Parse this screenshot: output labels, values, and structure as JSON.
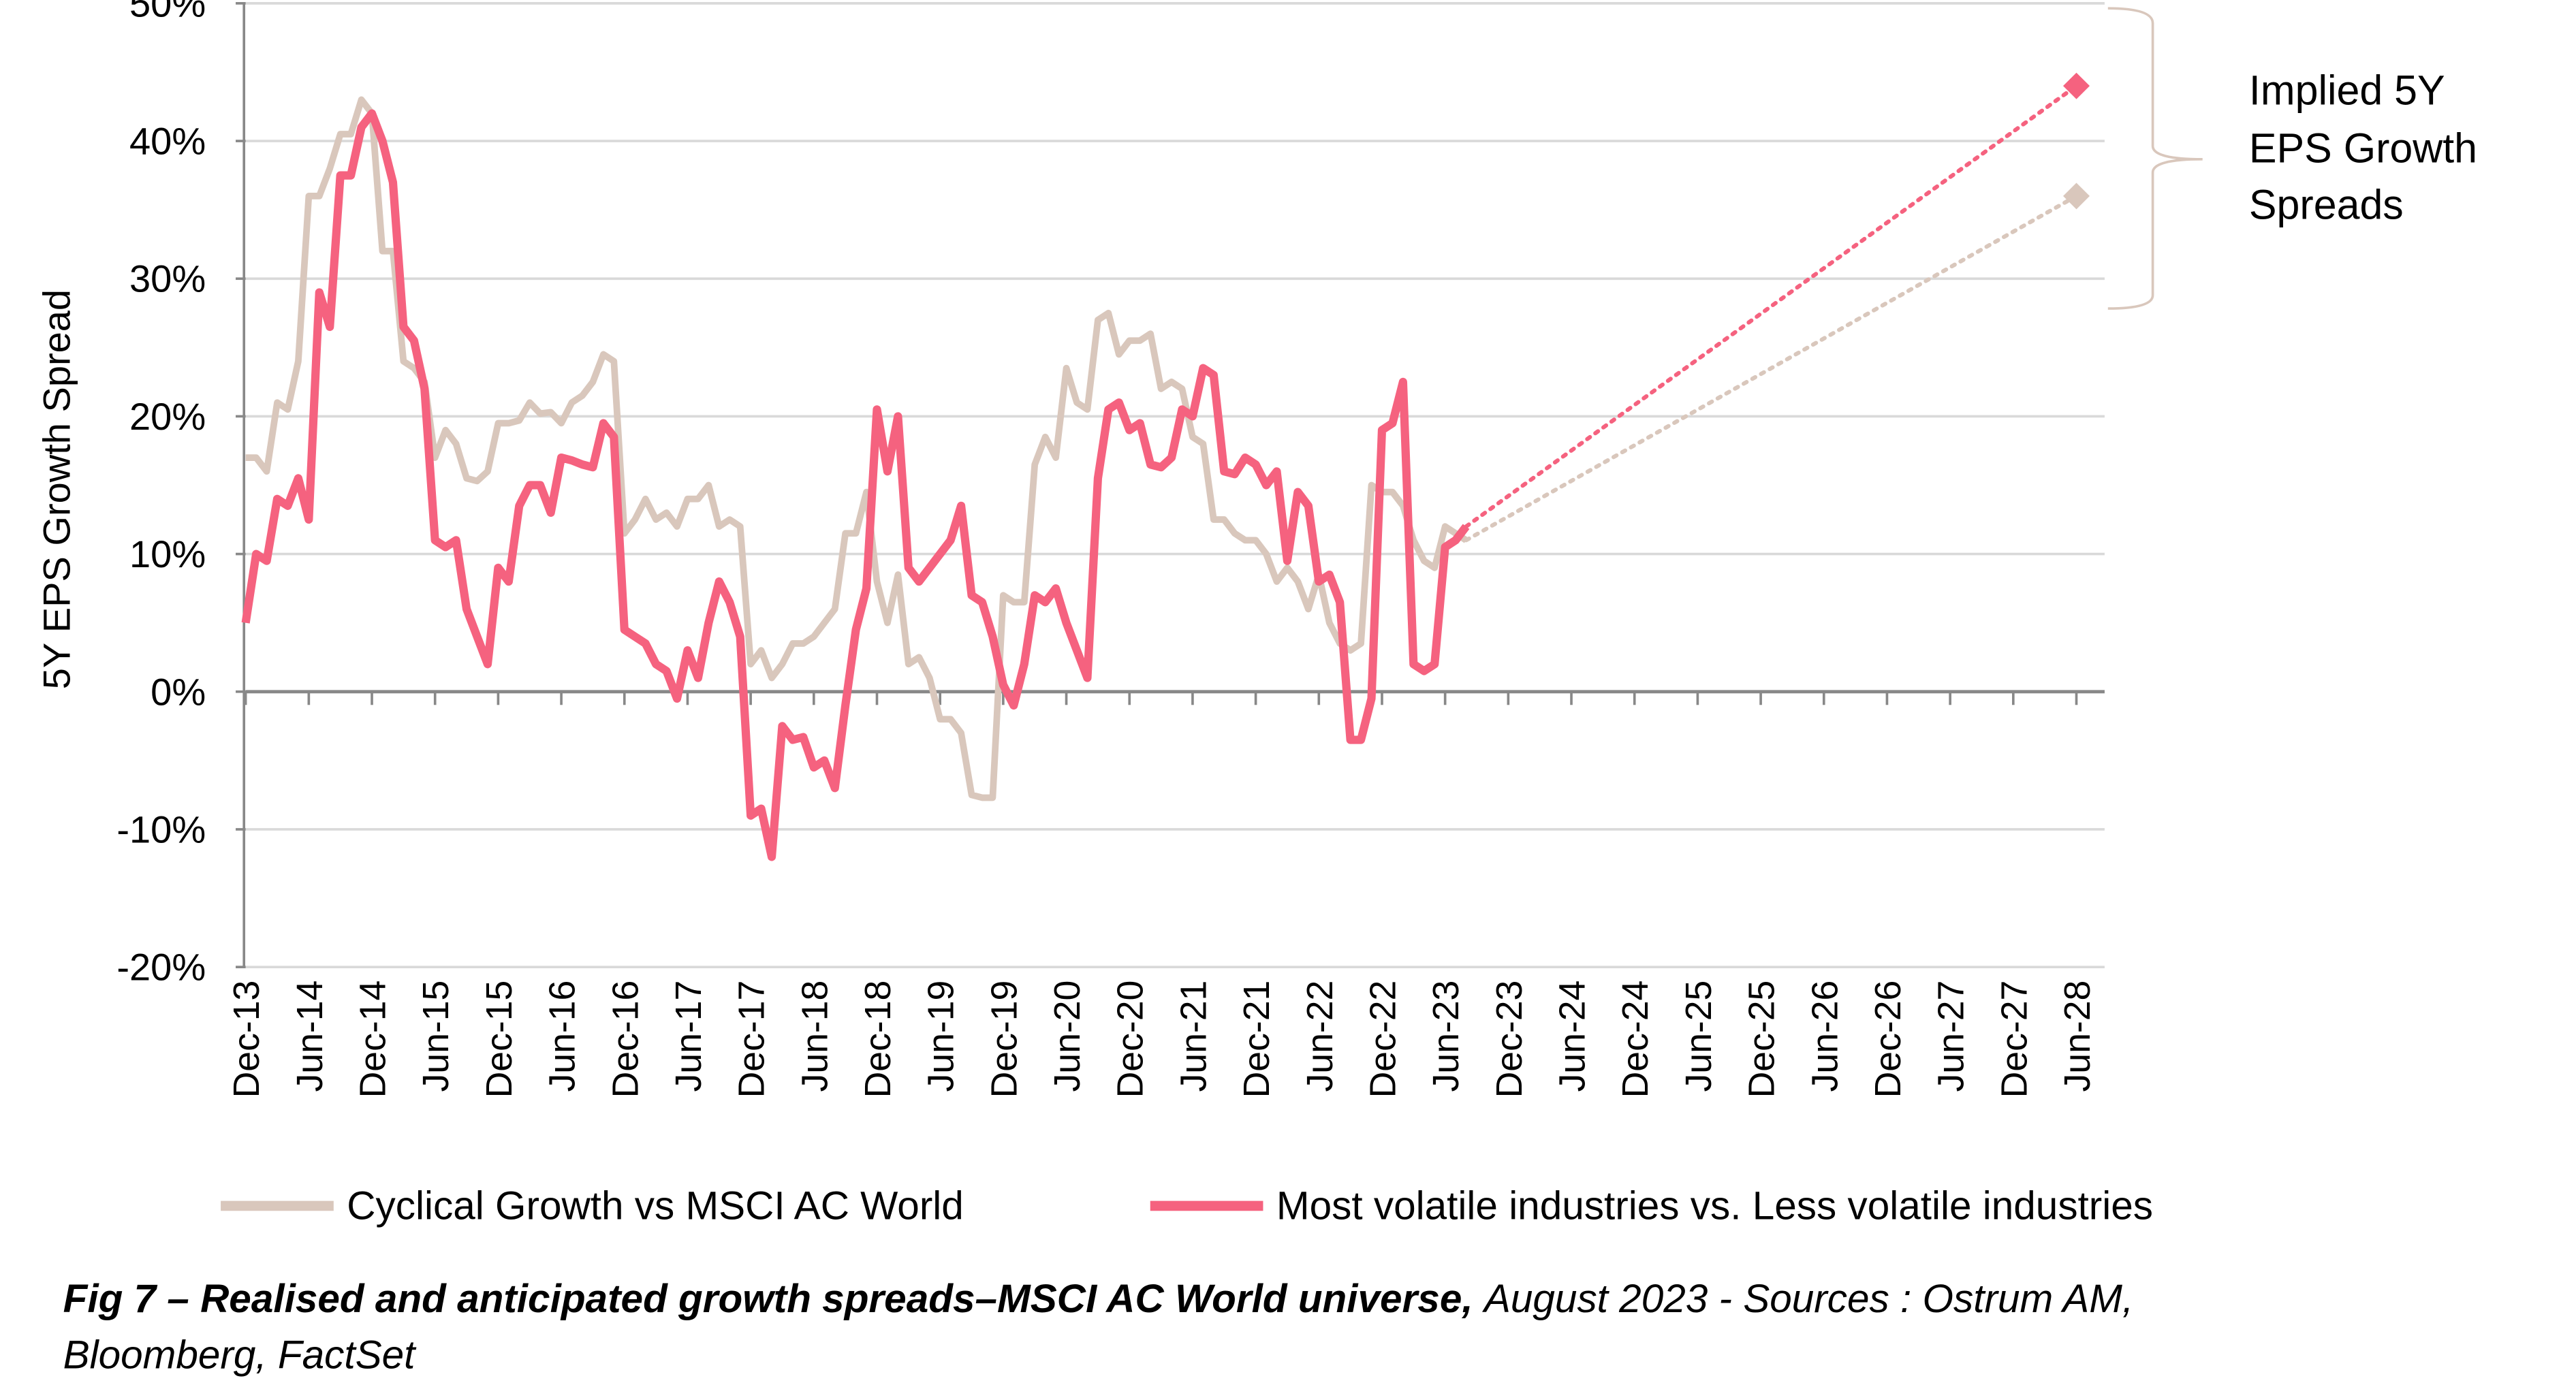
{
  "chart_data": {
    "type": "line",
    "ylabel": "5Y EPS Growth Spread",
    "ylim": [
      -20,
      50
    ],
    "yticks": [
      {
        "value": -20,
        "label": "-20%"
      },
      {
        "value": -10,
        "label": "-10%"
      },
      {
        "value": 0,
        "label": "0%"
      },
      {
        "value": 10,
        "label": "10%"
      },
      {
        "value": 20,
        "label": "20%"
      },
      {
        "value": 30,
        "label": "30%"
      },
      {
        "value": 40,
        "label": "40%"
      },
      {
        "value": 50,
        "label": "50%"
      }
    ],
    "grid": true,
    "xlim": [
      "Dec-13",
      "Jun-28"
    ],
    "xticks": [
      "Dec-13",
      "Jun-14",
      "Dec-14",
      "Jun-15",
      "Dec-15",
      "Jun-16",
      "Dec-16",
      "Jun-17",
      "Dec-17",
      "Jun-18",
      "Dec-18",
      "Jun-19",
      "Dec-19",
      "Jun-20",
      "Dec-20",
      "Jun-21",
      "Dec-21",
      "Jun-22",
      "Dec-22",
      "Jun-23",
      "Dec-23",
      "Jun-24",
      "Dec-24",
      "Jun-25",
      "Dec-25",
      "Jun-26",
      "Dec-26",
      "Jun-27",
      "Dec-27",
      "Jun-28"
    ],
    "x": [
      "Dec-13",
      "Jan-14",
      "Feb-14",
      "Mar-14",
      "Apr-14",
      "May-14",
      "Jun-14",
      "Jul-14",
      "Aug-14",
      "Sep-14",
      "Oct-14",
      "Nov-14",
      "Dec-14",
      "Jan-15",
      "Feb-15",
      "Mar-15",
      "Apr-15",
      "May-15",
      "Jun-15",
      "Jul-15",
      "Aug-15",
      "Sep-15",
      "Oct-15",
      "Nov-15",
      "Dec-15",
      "Jan-16",
      "Feb-16",
      "Mar-16",
      "Apr-16",
      "May-16",
      "Jun-16",
      "Jul-16",
      "Aug-16",
      "Sep-16",
      "Oct-16",
      "Nov-16",
      "Dec-16",
      "Jan-17",
      "Feb-17",
      "Mar-17",
      "Apr-17",
      "May-17",
      "Jun-17",
      "Jul-17",
      "Aug-17",
      "Sep-17",
      "Oct-17",
      "Nov-17",
      "Dec-17",
      "Jan-18",
      "Feb-18",
      "Mar-18",
      "Apr-18",
      "May-18",
      "Jun-18",
      "Jul-18",
      "Aug-18",
      "Sep-18",
      "Oct-18",
      "Nov-18",
      "Dec-18",
      "Jan-19",
      "Feb-19",
      "Mar-19",
      "Apr-19",
      "May-19",
      "Jun-19",
      "Jul-19",
      "Aug-19",
      "Sep-19",
      "Oct-19",
      "Nov-19",
      "Dec-19",
      "Jan-20",
      "Feb-20",
      "Mar-20",
      "Apr-20",
      "May-20",
      "Jun-20",
      "Jul-20",
      "Aug-20",
      "Sep-20",
      "Oct-20",
      "Nov-20",
      "Dec-20",
      "Jan-21",
      "Feb-21",
      "Mar-21",
      "Apr-21",
      "May-21",
      "Jun-21",
      "Jul-21",
      "Aug-21",
      "Sep-21",
      "Oct-21",
      "Nov-21",
      "Dec-21",
      "Jan-22",
      "Feb-22",
      "Mar-22",
      "Apr-22",
      "May-22",
      "Jun-22",
      "Jul-22",
      "Aug-22",
      "Sep-22",
      "Oct-22",
      "Nov-22",
      "Dec-22",
      "Jan-23",
      "Feb-23",
      "Mar-23",
      "Apr-23",
      "May-23",
      "Jun-23",
      "Jul-23",
      "Aug-23"
    ],
    "series": [
      {
        "name": "Cyclical Growth vs MSCI AC World",
        "color": "#d9c7bc",
        "values": [
          17,
          17,
          16,
          21,
          20.5,
          24,
          36,
          36,
          38,
          40.5,
          40.5,
          43,
          42,
          32,
          32,
          24,
          23.5,
          22.5,
          17,
          19,
          18,
          15.5,
          15.3,
          16,
          19.5,
          19.5,
          19.7,
          21,
          20.2,
          20.3,
          19.5,
          21,
          21.5,
          22.5,
          24.5,
          24,
          11.5,
          12.5,
          14,
          12.5,
          13,
          12,
          14,
          14,
          15,
          12,
          12.5,
          12,
          2,
          3,
          1,
          2,
          3.5,
          3.5,
          4,
          5,
          6,
          11.5,
          11.5,
          14.5,
          8,
          5,
          8.5,
          2,
          2.5,
          1,
          -2,
          -2,
          -3,
          -7.5,
          -7.7,
          -7.7,
          7,
          6.5,
          6.5,
          16.5,
          18.5,
          17,
          23.5,
          21,
          20.5,
          27,
          27.5,
          24.5,
          25.5,
          25.5,
          26,
          22,
          22.5,
          22,
          18.5,
          18,
          12.5,
          12.5,
          11.5,
          11,
          11,
          10,
          8,
          9,
          8,
          6,
          8.5,
          5,
          3.5,
          3,
          3.5,
          15,
          14.5,
          14.5,
          13.5,
          11,
          9.5,
          9,
          12,
          11.5,
          11
        ],
        "projection": {
          "x": "Jun-28",
          "value": 36
        }
      },
      {
        "name": "Most volatile industries vs. Less volatile industries",
        "color": "#f5627f",
        "values": [
          5,
          10,
          9.5,
          14,
          13.5,
          15.5,
          12.5,
          29,
          26.5,
          37.5,
          37.5,
          41,
          42,
          40,
          37,
          26.5,
          25.5,
          22,
          11,
          10.5,
          11,
          6,
          4,
          2,
          9,
          8,
          13.5,
          15,
          15,
          13,
          17,
          16.8,
          16.5,
          16.3,
          19.5,
          18.5,
          4.5,
          4,
          3.5,
          2,
          1.5,
          -0.5,
          3,
          1,
          5,
          8,
          6.5,
          4,
          -9,
          -8.5,
          -12,
          -2.5,
          -3.5,
          -3.3,
          -5.5,
          -5,
          -7,
          -1,
          4.5,
          7.5,
          20.5,
          16,
          20,
          9,
          8,
          9,
          10,
          11,
          13.5,
          7,
          6.5,
          4,
          0.5,
          -1,
          2,
          7,
          6.5,
          7.5,
          5,
          3,
          1,
          15.5,
          20.5,
          21,
          19,
          19.5,
          16.5,
          16.3,
          17,
          20.5,
          20,
          23.5,
          23,
          16,
          15.8,
          17,
          16.5,
          15,
          16,
          9.5,
          14.5,
          13.5,
          8,
          8.5,
          6.5,
          -3.5,
          -3.5,
          -0.5,
          19,
          19.5,
          22.5,
          2,
          1.5,
          2,
          10.5,
          11,
          12
        ],
        "projection": {
          "x": "Jun-28",
          "value": 44
        }
      }
    ],
    "annotation": [
      "Implied 5Y",
      "EPS Growth",
      "Spreads"
    ],
    "caption_title": "Fig 7 – Realised and anticipated growth spreads–MSCI AC World universe,",
    "caption_source": [
      "August 2023 - Sources : Ostrum AM,",
      "Bloomberg, FactSet"
    ]
  }
}
